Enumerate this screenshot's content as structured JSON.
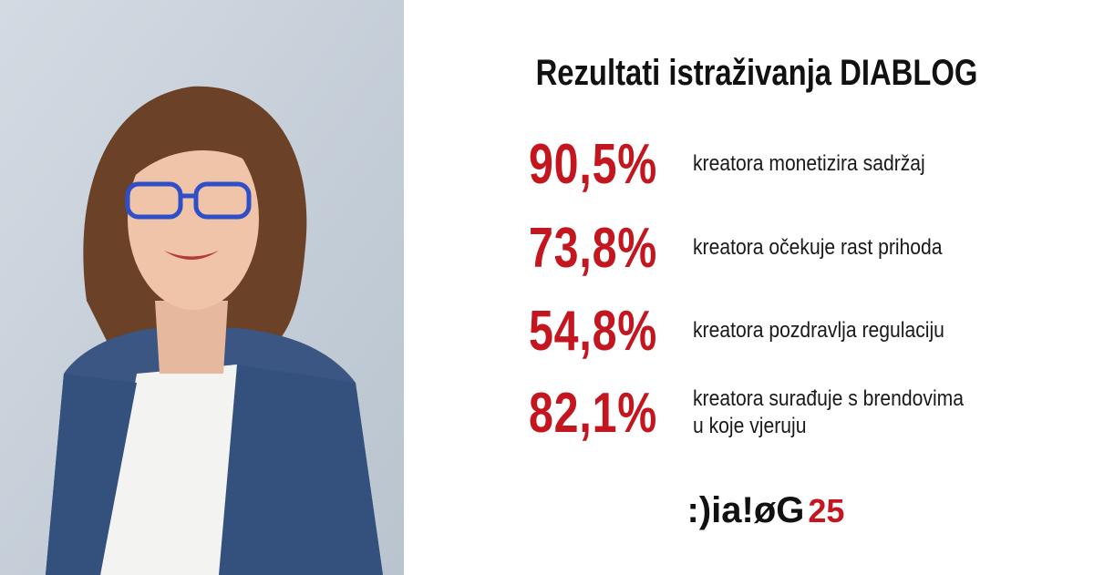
{
  "title": "Rezultati istraživanja DIABLOG",
  "stats": [
    {
      "figure": "90,5%",
      "lines": [
        "kreatora monetizira sadržaj"
      ]
    },
    {
      "figure": "73,8%",
      "lines": [
        "kreatora očekuje rast prihoda"
      ]
    },
    {
      "figure": "54,8%",
      "lines": [
        "kreatora pozdravlja regulaciju"
      ]
    },
    {
      "figure": "82,1%",
      "lines": [
        "kreatora surađuje s brendovima",
        "u koje vjeruju"
      ]
    }
  ],
  "logo": {
    "brand": ":)ia!øG",
    "edition": "25"
  }
}
